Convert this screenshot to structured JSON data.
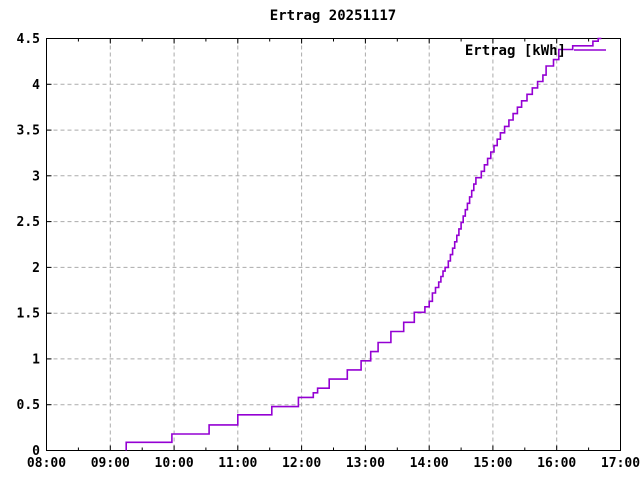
{
  "window": {
    "background": "#ffffff"
  },
  "chart_data": {
    "type": "line",
    "line_style": "steps",
    "title": "Ertrag 20251117",
    "xlabel": "",
    "ylabel": "",
    "legend": {
      "label": "Ertrag [kWh]",
      "position": "top-right-inside",
      "sample_line": true
    },
    "grid": true,
    "x_range_hours": [
      8,
      17
    ],
    "ylim": [
      0,
      4.5
    ],
    "x_tick_labels": [
      "08:00",
      "09:00",
      "10:00",
      "11:00",
      "12:00",
      "13:00",
      "14:00",
      "15:00",
      "16:00",
      "17:00"
    ],
    "x_minor_tick_interval_minutes": 30,
    "y_tick_labels": [
      "0",
      "0.5",
      "1",
      "1.5",
      "2",
      "2.5",
      "3",
      "3.5",
      "4",
      "4.5"
    ],
    "series": [
      {
        "name": "Ertrag [kWh]",
        "color": "#9400d3",
        "points": [
          [
            "09:15",
            0.0
          ],
          [
            "09:15",
            0.09
          ],
          [
            "09:58",
            0.18
          ],
          [
            "10:33",
            0.28
          ],
          [
            "11:00",
            0.39
          ],
          [
            "11:32",
            0.48
          ],
          [
            "11:57",
            0.58
          ],
          [
            "12:11",
            0.63
          ],
          [
            "12:15",
            0.68
          ],
          [
            "12:26",
            0.78
          ],
          [
            "12:43",
            0.88
          ],
          [
            "12:56",
            0.98
          ],
          [
            "13:05",
            1.08
          ],
          [
            "13:12",
            1.18
          ],
          [
            "13:24",
            1.3
          ],
          [
            "13:36",
            1.4
          ],
          [
            "13:46",
            1.51
          ],
          [
            "13:56",
            1.57
          ],
          [
            "14:00",
            1.63
          ],
          [
            "14:03",
            1.72
          ],
          [
            "14:06",
            1.78
          ],
          [
            "14:09",
            1.84
          ],
          [
            "14:11",
            1.9
          ],
          [
            "14:13",
            1.96
          ],
          [
            "14:15",
            2.0
          ],
          [
            "14:18",
            2.07
          ],
          [
            "14:20",
            2.14
          ],
          [
            "14:22",
            2.21
          ],
          [
            "14:24",
            2.28
          ],
          [
            "14:26",
            2.35
          ],
          [
            "14:28",
            2.42
          ],
          [
            "14:30",
            2.49
          ],
          [
            "14:32",
            2.56
          ],
          [
            "14:34",
            2.63
          ],
          [
            "14:36",
            2.7
          ],
          [
            "14:38",
            2.77
          ],
          [
            "14:40",
            2.84
          ],
          [
            "14:42",
            2.91
          ],
          [
            "14:44",
            2.98
          ],
          [
            "14:49",
            3.05
          ],
          [
            "14:52",
            3.12
          ],
          [
            "14:55",
            3.19
          ],
          [
            "14:58",
            3.26
          ],
          [
            "15:01",
            3.33
          ],
          [
            "15:04",
            3.4
          ],
          [
            "15:07",
            3.47
          ],
          [
            "15:11",
            3.54
          ],
          [
            "15:15",
            3.61
          ],
          [
            "15:19",
            3.68
          ],
          [
            "15:23",
            3.75
          ],
          [
            "15:27",
            3.82
          ],
          [
            "15:32",
            3.89
          ],
          [
            "15:37",
            3.96
          ],
          [
            "15:42",
            4.03
          ],
          [
            "15:47",
            4.1
          ],
          [
            "15:50",
            4.2
          ],
          [
            "15:57",
            4.27
          ],
          [
            "16:02",
            4.38
          ],
          [
            "16:15",
            4.42
          ],
          [
            "16:34",
            4.47
          ],
          [
            "16:39",
            4.5
          ],
          [
            "16:42",
            4.5
          ]
        ]
      }
    ]
  },
  "colors": {
    "series_line": "#9400d3",
    "grid": "#ababab",
    "border": "#000000",
    "text": "#000000",
    "background": "#ffffff"
  }
}
